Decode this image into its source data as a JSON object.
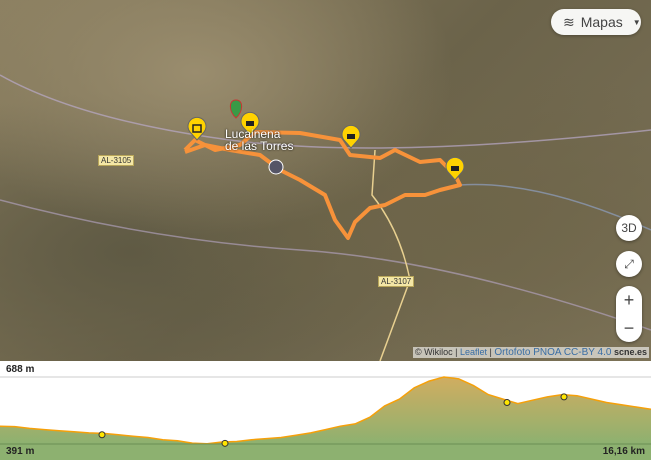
{
  "map": {
    "layers_label": "Mapas",
    "layers_icon": "layers-icon",
    "btn_3d": "3D",
    "fullscreen_icon": "expand-icon",
    "zoom_in": "+",
    "zoom_out": "−",
    "roads": [
      "AL-3105",
      "AL-3107"
    ],
    "town": "Lucainena de las Torres",
    "route_color": "#f7923a",
    "attribution": {
      "wikiloc": "© Wikiloc",
      "leaflet": "Leaflet",
      "ortho": "Ortofoto PNOA CC-BY 4.0",
      "scne": "scne.es"
    }
  },
  "profile": {
    "max_label": "688 m",
    "min_label": "391 m",
    "distance_label": "16,16 km",
    "line_color": "#f5a00a",
    "elevation_m": [
      470,
      468,
      460,
      455,
      450,
      445,
      440,
      438,
      432,
      425,
      420,
      410,
      405,
      395,
      392,
      400,
      402,
      410,
      415,
      420,
      430,
      440,
      455,
      470,
      480,
      510,
      560,
      590,
      640,
      670,
      688,
      680,
      650,
      610,
      590,
      570,
      585,
      600,
      610,
      605,
      590,
      575,
      565,
      555,
      545
    ]
  }
}
